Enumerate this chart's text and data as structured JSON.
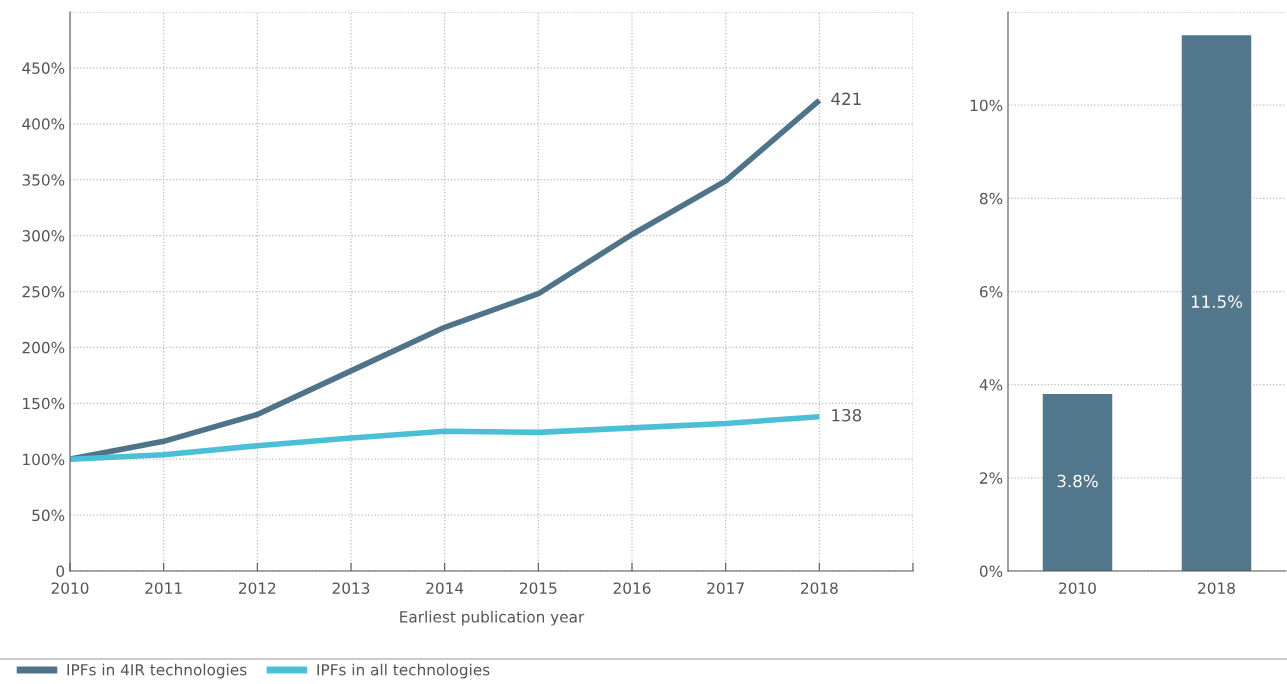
{
  "chart_data": [
    {
      "type": "line",
      "xlabel": "Earliest publication year",
      "x": [
        2010,
        2011,
        2012,
        2013,
        2014,
        2015,
        2016,
        2017,
        2018
      ],
      "series": [
        {
          "name": "IPFs in 4IR technologies",
          "color": "#4f7489",
          "values": [
            100,
            116,
            140,
            179,
            218,
            248,
            301,
            349,
            421
          ],
          "value_labels": [
            null,
            null,
            null,
            null,
            null,
            null,
            null,
            null,
            "421"
          ]
        },
        {
          "name": "IPFs in all technologies",
          "color": "#4bbfd6",
          "values": [
            100,
            104,
            112,
            119,
            125,
            124,
            128,
            132,
            138
          ],
          "value_labels": [
            null,
            null,
            null,
            null,
            null,
            null,
            null,
            null,
            "138"
          ]
        }
      ],
      "xlim": [
        2010,
        2019
      ],
      "xticks": [
        2010,
        2011,
        2012,
        2013,
        2014,
        2015,
        2016,
        2017,
        2018,
        {
          "value": 2019,
          "label": null
        }
      ],
      "ylim": [
        0,
        500
      ],
      "yticks": [
        {
          "value": 0,
          "label": "0"
        },
        {
          "value": 50,
          "label": "50%"
        },
        {
          "value": 100,
          "label": "100%"
        },
        {
          "value": 150,
          "label": "150%"
        },
        {
          "value": 200,
          "label": "200%"
        },
        {
          "value": 250,
          "label": "250%"
        },
        {
          "value": 300,
          "label": "300%"
        },
        {
          "value": 350,
          "label": "350%"
        },
        {
          "value": 400,
          "label": "400%"
        },
        {
          "value": 450,
          "label": "450%"
        },
        {
          "value": 500,
          "label": null
        }
      ],
      "grid": true,
      "legend": "bottom left",
      "line_style": "solid",
      "marker": "none"
    },
    {
      "type": "bar",
      "categories": [
        "2010",
        "2018"
      ],
      "values": [
        3.8,
        11.5
      ],
      "value_labels": [
        "3.8%",
        "11.5%"
      ],
      "color": "#52778c",
      "ylim": [
        0,
        12
      ],
      "yticks": [
        {
          "value": 0,
          "label": "0%"
        },
        {
          "value": 2,
          "label": "2%"
        },
        {
          "value": 4,
          "label": "4%"
        },
        {
          "value": 6,
          "label": "6%"
        },
        {
          "value": 8,
          "label": "8%"
        },
        {
          "value": 10,
          "label": "10%"
        },
        {
          "value": 12,
          "label": null
        }
      ],
      "grid": "y"
    }
  ]
}
